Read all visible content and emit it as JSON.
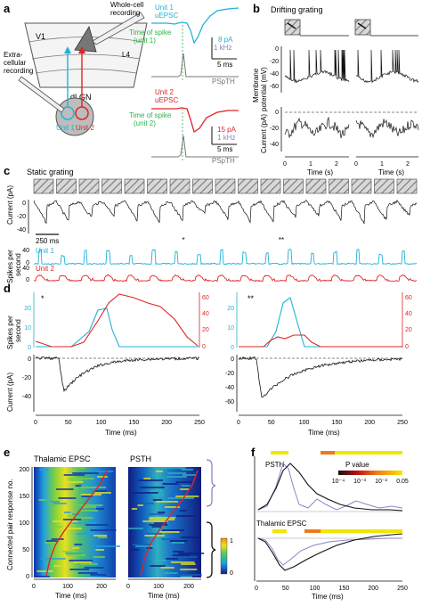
{
  "panel_letters": {
    "a": "a",
    "b": "b",
    "c": "c",
    "d": "d",
    "e": "e",
    "f": "f"
  },
  "panel_a": {
    "v1": "V1",
    "l4": "L4",
    "dlgn": "dLGN",
    "whole_cell": [
      "Whole-cell",
      "recording"
    ],
    "extracellular": [
      "Extra-",
      "cellular",
      "recording"
    ],
    "unit1": "Unit 1",
    "unit2": "Unit 2",
    "trace1_title": [
      "Unit 1",
      "uEPSC"
    ],
    "trace2_title": [
      "Unit 2",
      "uEPSC"
    ],
    "spike1": [
      "Time of spike",
      "(unit 1)"
    ],
    "spike2": [
      "Time of spike",
      "(unit 2)"
    ],
    "scale1": [
      "8 pA",
      "1 kHz",
      "5 ms"
    ],
    "scale2": [
      "15 pA",
      "1 kHz",
      "5 ms"
    ],
    "psth": "PSpTH"
  },
  "panel_b": {
    "title": "Drifting grating",
    "ylabel_top": [
      "Membrane",
      "potential (mV)"
    ],
    "ylabel_bottom": "Current (pA)",
    "xlabel": "Time (s)",
    "top_ticks": [
      "0",
      "-20",
      "-40",
      "-60"
    ],
    "bottom_ticks": [
      "0",
      "-20",
      "-40"
    ],
    "x_ticks": [
      "0",
      "1",
      "2"
    ]
  },
  "panel_c": {
    "title": "Static grating",
    "ylabel": "Current (pA)",
    "y_ticks": [
      "0",
      "-20",
      "-40"
    ],
    "scalebar": "250 ms",
    "rate_label": [
      "Spikes per",
      "second"
    ],
    "unit1": "Unit 1",
    "unit2": "Unit 2",
    "r1_ticks": [
      "40",
      "0"
    ],
    "r2_ticks": [
      "40",
      "0"
    ],
    "star1": "*",
    "star2": "**"
  },
  "panel_d": {
    "left_star": "*",
    "right_star": "**",
    "ylabel_rate": [
      "Spikes per",
      "second"
    ],
    "ylabel_current": "Current (pA)",
    "xlabel": "Time (ms)",
    "rate_left_ticks": [
      "20",
      "10",
      "0"
    ],
    "rate_right_ticks": [
      "60",
      "40",
      "20",
      "0"
    ],
    "current_left_ticks": [
      "0",
      "-20",
      "-40"
    ],
    "current_right_ticks": [
      "0",
      "-20",
      "-40",
      "-60"
    ],
    "x_ticks": [
      "0",
      "50",
      "100",
      "150",
      "200",
      "250"
    ]
  },
  "panel_e": {
    "title_left": "Thalamic EPSC",
    "title_right": "PSTH",
    "ylabel": "Connected pair response no.",
    "xlabel": "Time (ms)",
    "y_ticks": [
      "200",
      "150",
      "100",
      "50",
      "0"
    ],
    "x_ticks_left": [
      "0",
      "100",
      "200"
    ],
    "x_ticks_right": [
      "0",
      "100",
      "200"
    ],
    "colorbar_ticks": [
      "1",
      "0"
    ]
  },
  "panel_f": {
    "psth_label": "PSTH",
    "epsc_label": "Thalamic EPSC",
    "pvalue_label": "P value",
    "pvalue_ticks": [
      "10⁻⁴",
      "10⁻³",
      "10⁻²",
      "0.05"
    ],
    "xlabel": "Time (ms)",
    "x_ticks": [
      "0",
      "50",
      "100",
      "150",
      "200",
      "250"
    ]
  },
  "colors": {
    "unit1": "#1fb3d6",
    "unit2": "#e02424",
    "spike_marker": "#2db34a",
    "pairs_lavender": "#8a86c8",
    "significance_yellow": "#f2e600",
    "significance_orange": "#f07a1a"
  }
}
